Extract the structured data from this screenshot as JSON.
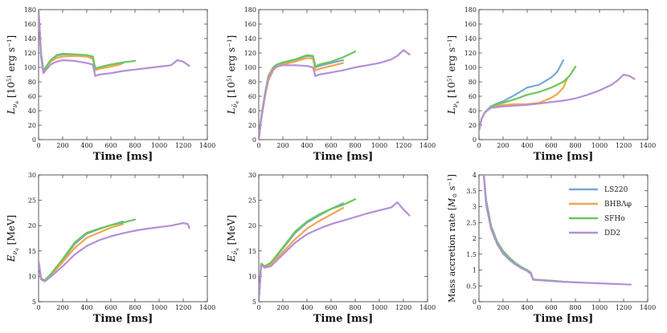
{
  "colors": {
    "LS220": "#7aa6d8",
    "BHBAphi": "#f4a64a",
    "SFHo": "#6cc65a",
    "DD2": "#b58fd6"
  },
  "legend": {
    "labels": [
      "LS220",
      "BHBΛφ",
      "SFHo",
      "DD2"
    ],
    "placement": "upper-right"
  },
  "chart_data": [
    {
      "type": "line",
      "panel": "L_nue",
      "xlabel": "Time [ms]",
      "ylabel": "L_{ν_e} [10^51 erg s^−1]",
      "xlim": [
        0,
        1400
      ],
      "ylim": [
        0,
        180
      ],
      "xticks": [
        0,
        200,
        400,
        600,
        800,
        1000,
        1200,
        1400
      ],
      "yticks": [
        0,
        20,
        40,
        60,
        80,
        100,
        120,
        140,
        160,
        180
      ],
      "series": [
        {
          "name": "LS220",
          "x": [
            0,
            20,
            40,
            60,
            100,
            150,
            200,
            300,
            400,
            450,
            470,
            500,
            600,
            700
          ],
          "y": [
            180,
            120,
            95,
            100,
            110,
            116,
            118,
            118,
            117,
            115,
            98,
            100,
            104,
            106
          ]
        },
        {
          "name": "BHBAphi",
          "x": [
            0,
            20,
            40,
            60,
            100,
            150,
            200,
            300,
            400,
            450,
            470,
            500,
            600,
            680
          ],
          "y": [
            180,
            120,
            95,
            100,
            108,
            113,
            115,
            116,
            115,
            112,
            96,
            98,
            101,
            104
          ]
        },
        {
          "name": "SFHo",
          "x": [
            0,
            20,
            40,
            60,
            100,
            150,
            200,
            300,
            400,
            450,
            470,
            500,
            600,
            700,
            800
          ],
          "y": [
            180,
            120,
            95,
            100,
            110,
            117,
            119,
            118,
            117,
            115,
            98,
            100,
            104,
            107,
            109
          ]
        },
        {
          "name": "DD2",
          "x": [
            0,
            20,
            40,
            60,
            100,
            150,
            200,
            300,
            400,
            450,
            470,
            500,
            600,
            700,
            800,
            900,
            1000,
            1100,
            1150,
            1200,
            1250
          ],
          "y": [
            180,
            115,
            92,
            96,
            104,
            108,
            110,
            109,
            106,
            104,
            88,
            90,
            92,
            95,
            97,
            99,
            101,
            103,
            110,
            108,
            102
          ]
        }
      ]
    },
    {
      "type": "line",
      "panel": "L_anue",
      "xlabel": "Time [ms]",
      "ylabel": "L_{ν̄_e} [10^51 erg s^−1]",
      "xlim": [
        0,
        1400
      ],
      "ylim": [
        0,
        180
      ],
      "xticks": [
        0,
        200,
        400,
        600,
        800,
        1000,
        1200,
        1400
      ],
      "yticks": [
        0,
        20,
        40,
        60,
        80,
        100,
        120,
        140,
        160,
        180
      ],
      "series": [
        {
          "name": "LS220",
          "x": [
            0,
            20,
            50,
            80,
            120,
            150,
            200,
            300,
            400,
            450,
            470,
            500,
            600,
            700
          ],
          "y": [
            0,
            30,
            62,
            88,
            100,
            104,
            106,
            110,
            116,
            115,
            100,
            102,
            106,
            110
          ]
        },
        {
          "name": "BHBAphi",
          "x": [
            0,
            20,
            50,
            80,
            120,
            150,
            200,
            300,
            400,
            450,
            470,
            500,
            600,
            700
          ],
          "y": [
            0,
            28,
            58,
            82,
            96,
            101,
            104,
            108,
            113,
            112,
            96,
            98,
            102,
            106
          ]
        },
        {
          "name": "SFHo",
          "x": [
            0,
            20,
            50,
            80,
            120,
            150,
            200,
            300,
            400,
            450,
            470,
            500,
            600,
            700,
            800
          ],
          "y": [
            0,
            30,
            62,
            88,
            100,
            104,
            107,
            111,
            117,
            116,
            101,
            104,
            108,
            114,
            122
          ]
        },
        {
          "name": "DD2",
          "x": [
            0,
            20,
            50,
            80,
            120,
            150,
            200,
            300,
            400,
            450,
            470,
            500,
            600,
            700,
            800,
            900,
            1000,
            1100,
            1150,
            1200,
            1250
          ],
          "y": [
            0,
            28,
            60,
            86,
            98,
            101,
            103,
            103,
            102,
            100,
            88,
            90,
            93,
            96,
            100,
            103,
            106,
            111,
            116,
            124,
            118
          ]
        }
      ]
    },
    {
      "type": "line",
      "panel": "L_nux",
      "xlabel": "Time [ms]",
      "ylabel": "L_{ν_x} [10^51 erg s^−1]",
      "xlim": [
        0,
        1400
      ],
      "ylim": [
        0,
        180
      ],
      "xticks": [
        0,
        200,
        400,
        600,
        800,
        1000,
        1200,
        1400
      ],
      "yticks": [
        0,
        20,
        40,
        60,
        80,
        100,
        120,
        140,
        160,
        180
      ],
      "series": [
        {
          "name": "LS220",
          "x": [
            0,
            20,
            50,
            100,
            150,
            200,
            300,
            400,
            500,
            600,
            650,
            700
          ],
          "y": [
            12,
            28,
            38,
            46,
            50,
            53,
            62,
            72,
            76,
            86,
            94,
            110
          ]
        },
        {
          "name": "BHBAphi",
          "x": [
            0,
            20,
            50,
            100,
            150,
            200,
            300,
            400,
            500,
            600,
            650,
            700,
            730
          ],
          "y": [
            12,
            28,
            38,
            45,
            47,
            48,
            49,
            49,
            51,
            58,
            63,
            72,
            84
          ]
        },
        {
          "name": "SFHo",
          "x": [
            0,
            20,
            50,
            100,
            150,
            200,
            300,
            400,
            500,
            600,
            700,
            750,
            800
          ],
          "y": [
            12,
            28,
            38,
            46,
            49,
            51,
            56,
            62,
            66,
            72,
            80,
            88,
            101
          ]
        },
        {
          "name": "DD2",
          "x": [
            0,
            20,
            50,
            100,
            150,
            200,
            300,
            400,
            500,
            600,
            700,
            800,
            900,
            1000,
            1100,
            1150,
            1200,
            1250,
            1290
          ],
          "y": [
            12,
            28,
            38,
            44,
            45,
            46,
            47,
            48,
            50,
            52,
            54,
            57,
            62,
            68,
            76,
            82,
            90,
            88,
            84
          ]
        }
      ]
    },
    {
      "type": "line",
      "panel": "E_nue",
      "xlabel": "Time [ms]",
      "ylabel": "E_{ν_e} [MeV]",
      "xlim": [
        0,
        1400
      ],
      "ylim": [
        5,
        30
      ],
      "xticks": [
        0,
        200,
        400,
        600,
        800,
        1000,
        1200,
        1400
      ],
      "yticks": [
        5,
        10,
        15,
        20,
        25,
        30
      ],
      "series": [
        {
          "name": "LS220",
          "x": [
            0,
            20,
            50,
            100,
            200,
            300,
            400,
            500,
            600,
            700
          ],
          "y": [
            13,
            9.6,
            9.2,
            10.4,
            13.2,
            16.4,
            18.4,
            19.3,
            20.1,
            20.8
          ]
        },
        {
          "name": "BHBAphi",
          "x": [
            0,
            20,
            50,
            100,
            200,
            300,
            400,
            500,
            600,
            700
          ],
          "y": [
            13,
            9.6,
            9.1,
            10.2,
            12.8,
            15.6,
            17.6,
            18.6,
            19.6,
            20.3
          ]
        },
        {
          "name": "SFHo",
          "x": [
            0,
            20,
            50,
            100,
            200,
            300,
            400,
            500,
            600,
            700,
            800
          ],
          "y": [
            13,
            9.6,
            9.2,
            10.4,
            13.4,
            16.7,
            18.6,
            19.4,
            20.1,
            20.6,
            21.2
          ]
        },
        {
          "name": "DD2",
          "x": [
            0,
            20,
            50,
            100,
            200,
            300,
            400,
            500,
            600,
            700,
            800,
            900,
            1000,
            1100,
            1200,
            1240,
            1250
          ],
          "y": [
            13,
            9.4,
            9.0,
            9.9,
            12.0,
            14.3,
            16.0,
            17.1,
            17.9,
            18.5,
            19.0,
            19.4,
            19.7,
            20.0,
            20.5,
            20.3,
            19.5
          ]
        }
      ]
    },
    {
      "type": "line",
      "panel": "E_anue",
      "xlabel": "Time [ms]",
      "ylabel": "E_{ν̄_e} [MeV]",
      "xlim": [
        0,
        1400
      ],
      "ylim": [
        5,
        30
      ],
      "xticks": [
        0,
        200,
        400,
        600,
        800,
        1000,
        1200,
        1400
      ],
      "yticks": [
        5,
        10,
        15,
        20,
        25,
        30
      ],
      "series": [
        {
          "name": "LS220",
          "x": [
            0,
            20,
            50,
            100,
            200,
            300,
            400,
            500,
            600,
            700
          ],
          "y": [
            5,
            12.5,
            12.0,
            12.6,
            15.5,
            18.5,
            20.6,
            22.0,
            23.3,
            24.4
          ]
        },
        {
          "name": "BHBAphi",
          "x": [
            0,
            20,
            50,
            100,
            200,
            300,
            400,
            500,
            600,
            700
          ],
          "y": [
            5,
            12.3,
            11.8,
            12.3,
            14.8,
            17.3,
            19.4,
            20.9,
            22.2,
            23.5
          ]
        },
        {
          "name": "SFHo",
          "x": [
            0,
            20,
            50,
            100,
            200,
            300,
            400,
            500,
            600,
            700,
            800
          ],
          "y": [
            5,
            12.5,
            12.0,
            12.7,
            15.7,
            18.8,
            20.8,
            22.2,
            23.3,
            24.1,
            25.2
          ]
        },
        {
          "name": "DD2",
          "x": [
            0,
            20,
            50,
            100,
            200,
            300,
            400,
            500,
            600,
            700,
            800,
            900,
            1000,
            1100,
            1150,
            1200,
            1250
          ],
          "y": [
            5,
            12.2,
            11.7,
            12.0,
            14.3,
            16.6,
            18.3,
            19.4,
            20.3,
            21.0,
            21.7,
            22.4,
            23.0,
            23.6,
            24.6,
            23.2,
            22.0
          ]
        }
      ]
    },
    {
      "type": "line",
      "panel": "accretion",
      "xlabel": "Time [ms]",
      "ylabel": "Mass accretion rate [M_⊙ s^−1]",
      "xlim": [
        0,
        1400
      ],
      "ylim": [
        0,
        4.0
      ],
      "xticks": [
        0,
        200,
        400,
        600,
        800,
        1000,
        1200,
        1400
      ],
      "yticks": [
        0,
        0.5,
        1.0,
        1.5,
        2.0,
        2.5,
        3.0,
        3.5,
        4.0
      ],
      "series": [
        {
          "name": "LS220",
          "x": [
            40,
            60,
            100,
            150,
            200,
            250,
            300,
            350,
            400,
            430,
            450,
            600,
            700
          ],
          "y": [
            4.0,
            3.2,
            2.4,
            1.9,
            1.6,
            1.4,
            1.23,
            1.1,
            1.0,
            0.92,
            0.7,
            0.66,
            0.63
          ]
        },
        {
          "name": "BHBAphi",
          "x": [
            40,
            60,
            100,
            150,
            200,
            250,
            300,
            350,
            400,
            430,
            450,
            600,
            700
          ],
          "y": [
            4.0,
            3.1,
            2.35,
            1.85,
            1.55,
            1.36,
            1.2,
            1.08,
            0.98,
            0.9,
            0.7,
            0.66,
            0.63
          ]
        },
        {
          "name": "SFHo",
          "x": [
            40,
            60,
            100,
            150,
            200,
            250,
            300,
            350,
            400,
            430,
            450,
            600,
            700,
            800
          ],
          "y": [
            4.0,
            3.15,
            2.38,
            1.88,
            1.58,
            1.38,
            1.21,
            1.09,
            0.99,
            0.91,
            0.7,
            0.66,
            0.63,
            0.61
          ]
        },
        {
          "name": "DD2",
          "x": [
            40,
            60,
            100,
            150,
            200,
            250,
            300,
            350,
            400,
            430,
            450,
            600,
            800,
            1000,
            1200,
            1260
          ],
          "y": [
            4.0,
            3.05,
            2.3,
            1.82,
            1.52,
            1.33,
            1.18,
            1.06,
            0.97,
            0.88,
            0.69,
            0.65,
            0.61,
            0.58,
            0.55,
            0.54
          ]
        }
      ]
    }
  ]
}
